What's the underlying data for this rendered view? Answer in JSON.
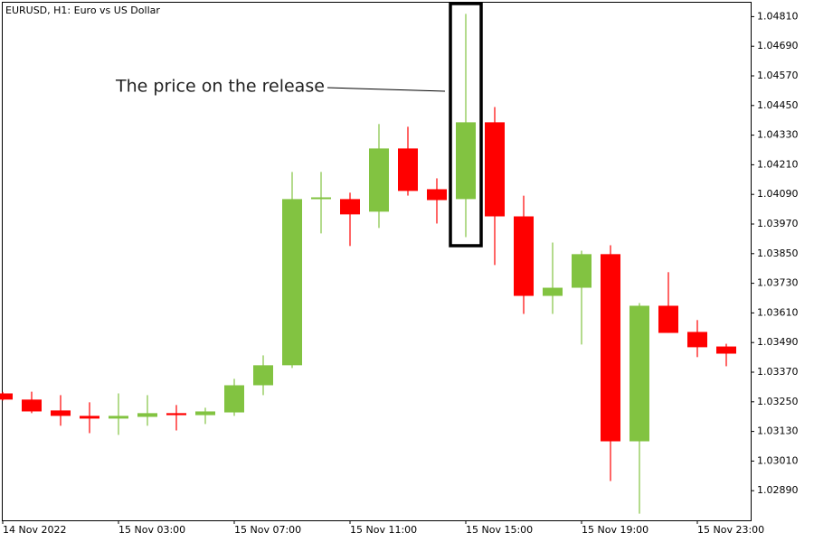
{
  "chart_data": {
    "type": "candlestick",
    "title": "EURUSD, H1:  Euro vs US Dollar",
    "annotation": "The price on the release",
    "categories": [
      "14 Nov 2022",
      null,
      null,
      null,
      "15 Nov 03:00",
      null,
      null,
      null,
      "15 Nov 07:00",
      null,
      null,
      null,
      "15 Nov 11:00",
      null,
      null,
      null,
      "15 Nov 15:00",
      null,
      null,
      null,
      "15 Nov 19:00",
      null,
      null,
      null,
      "15 Nov 23:00",
      null
    ],
    "open": [
      1.03284,
      1.03259,
      1.03215,
      1.03193,
      1.03182,
      1.03189,
      1.03204,
      1.03196,
      1.03207,
      1.03317,
      1.03398,
      1.04071,
      1.04071,
      1.0402,
      1.04276,
      1.04111,
      1.04071,
      1.04382,
      1.04001,
      1.03679,
      1.03712,
      1.03848,
      1.0309,
      1.03639,
      1.03533,
      1.03474
    ],
    "high": [
      1.0329,
      1.03291,
      1.03277,
      1.03248,
      1.03284,
      1.03277,
      1.03237,
      1.03226,
      1.03343,
      1.03438,
      1.04181,
      1.04181,
      1.04097,
      1.04375,
      1.04364,
      1.04155,
      1.04821,
      1.04444,
      1.04085,
      1.03895,
      1.03862,
      1.03884,
      1.0365,
      1.03775,
      1.03581,
      1.03485
    ],
    "low": [
      1.03255,
      1.03204,
      1.03153,
      1.03123,
      1.03116,
      1.03153,
      1.03134,
      1.0316,
      1.03193,
      1.03277,
      1.03387,
      1.03932,
      1.03881,
      1.03954,
      1.04085,
      1.03972,
      1.03917,
      1.03804,
      1.03606,
      1.03606,
      1.03482,
      1.02929,
      1.02797,
      1.03529,
      1.03431,
      1.03394
    ],
    "close": [
      1.03259,
      1.03211,
      1.03193,
      1.03182,
      1.03193,
      1.03204,
      1.03196,
      1.03211,
      1.03317,
      1.03398,
      1.04071,
      1.04078,
      1.04009,
      1.04276,
      1.04104,
      1.04067,
      1.04382,
      1.04001,
      1.03679,
      1.03712,
      1.03848,
      1.0309,
      1.03639,
      1.03529,
      1.03471,
      1.03445
    ],
    "up_color": "#82c341",
    "down_color": "#ff0000",
    "ylim": [
      1.0277,
      1.0487
    ],
    "yticks": [
      {
        "value": 1.0481,
        "label": "1.04810"
      },
      {
        "value": 1.0469,
        "label": "1.04690"
      },
      {
        "value": 1.0457,
        "label": "1.04570"
      },
      {
        "value": 1.0445,
        "label": "1.04450"
      },
      {
        "value": 1.0433,
        "label": "1.04330"
      },
      {
        "value": 1.0421,
        "label": "1.04210"
      },
      {
        "value": 1.0409,
        "label": "1.04090"
      },
      {
        "value": 1.0397,
        "label": "1.03970"
      },
      {
        "value": 1.0385,
        "label": "1.03850"
      },
      {
        "value": 1.0373,
        "label": "1.03730"
      },
      {
        "value": 1.0361,
        "label": "1.03610"
      },
      {
        "value": 1.0349,
        "label": "1.03490"
      },
      {
        "value": 1.0337,
        "label": "1.03370"
      },
      {
        "value": 1.0325,
        "label": "1.03250"
      },
      {
        "value": 1.0313,
        "label": "1.03130"
      },
      {
        "value": 1.0301,
        "label": "1.03010"
      },
      {
        "value": 1.0289,
        "label": "1.02890"
      }
    ],
    "grid": false
  }
}
